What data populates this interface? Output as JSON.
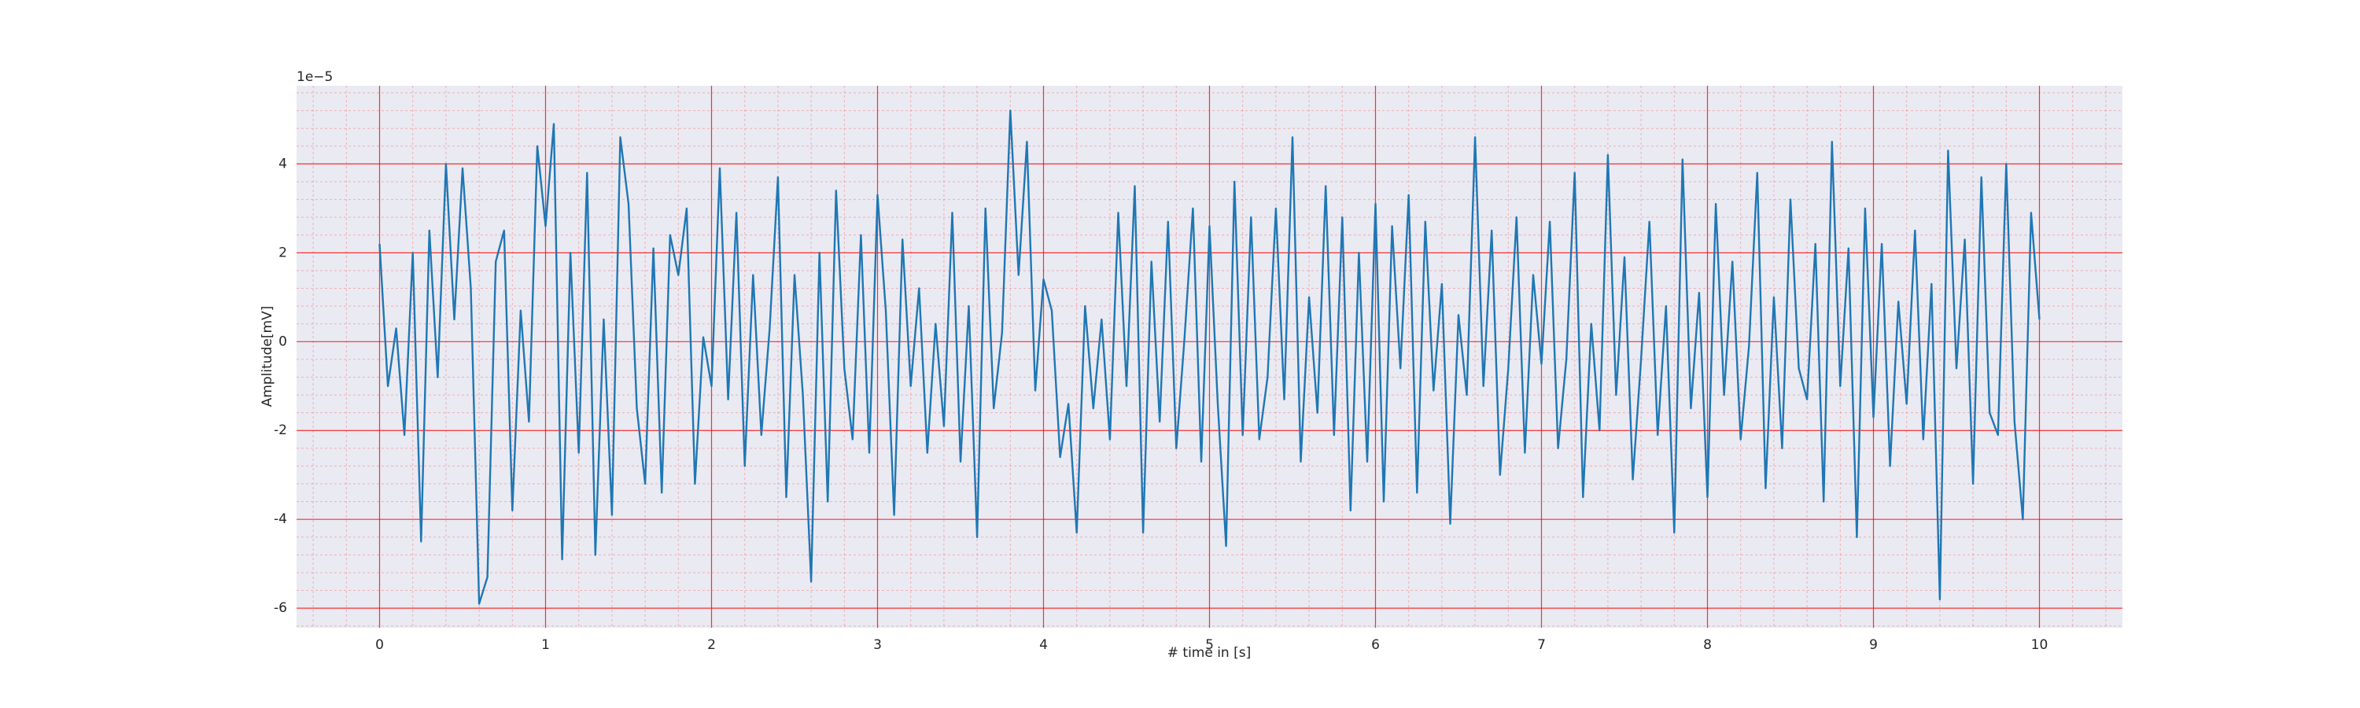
{
  "chart_data": {
    "type": "line",
    "x_label": "# time in [s]",
    "y_label": "Amplitude[mV]",
    "y_offset_label": "1e−5",
    "xlim": [
      -0.5,
      10.5
    ],
    "ylim": [
      -6.44,
      5.76
    ],
    "xticks": [
      0,
      1,
      2,
      3,
      4,
      5,
      6,
      7,
      8,
      9,
      10
    ],
    "yticks": [
      -6,
      -4,
      -2,
      0,
      2,
      4
    ],
    "grid": true,
    "grid_color": "#ff0000",
    "minor_divisions": 5,
    "background": "#eaeaf2",
    "x": [
      0,
      0.05,
      0.1,
      0.15,
      0.2,
      0.25,
      0.3,
      0.35,
      0.4,
      0.45,
      0.5,
      0.55,
      0.6,
      0.65,
      0.7,
      0.75,
      0.8,
      0.85,
      0.9,
      0.95,
      1,
      1.05,
      1.1,
      1.15,
      1.2,
      1.25,
      1.3,
      1.35,
      1.4,
      1.45,
      1.5,
      1.55,
      1.6,
      1.65,
      1.7,
      1.75,
      1.8,
      1.85,
      1.9,
      1.95,
      2,
      2.05,
      2.1,
      2.15,
      2.2,
      2.25,
      2.3,
      2.35,
      2.4,
      2.45,
      2.5,
      2.55,
      2.6,
      2.65,
      2.7,
      2.75,
      2.8,
      2.85,
      2.9,
      2.95,
      3,
      3.05,
      3.1,
      3.15,
      3.2,
      3.25,
      3.3,
      3.35,
      3.4,
      3.45,
      3.5,
      3.55,
      3.6,
      3.65,
      3.7,
      3.75,
      3.8,
      3.85,
      3.9,
      3.95,
      4,
      4.05,
      4.1,
      4.15,
      4.2,
      4.25,
      4.3,
      4.35,
      4.4,
      4.45,
      4.5,
      4.55,
      4.6,
      4.65,
      4.7,
      4.75,
      4.8,
      4.85,
      4.9,
      4.95,
      5,
      5.05,
      5.1,
      5.15,
      5.2,
      5.25,
      5.3,
      5.35,
      5.4,
      5.45,
      5.5,
      5.55,
      5.6,
      5.65,
      5.7,
      5.75,
      5.8,
      5.85,
      5.9,
      5.95,
      6,
      6.05,
      6.1,
      6.15,
      6.2,
      6.25,
      6.3,
      6.35,
      6.4,
      6.45,
      6.5,
      6.55,
      6.6,
      6.65,
      6.7,
      6.75,
      6.8,
      6.85,
      6.9,
      6.95,
      7,
      7.05,
      7.1,
      7.15,
      7.2,
      7.25,
      7.3,
      7.35,
      7.4,
      7.45,
      7.5,
      7.55,
      7.6,
      7.65,
      7.7,
      7.75,
      7.8,
      7.85,
      7.9,
      7.95,
      8,
      8.05,
      8.1,
      8.15,
      8.2,
      8.25,
      8.3,
      8.35,
      8.4,
      8.45,
      8.5,
      8.55,
      8.6,
      8.65,
      8.7,
      8.75,
      8.8,
      8.85,
      8.9,
      8.95,
      9,
      9.05,
      9.1,
      9.15,
      9.2,
      9.25,
      9.3,
      9.35,
      9.4,
      9.45,
      9.5,
      9.55,
      9.6,
      9.65,
      9.7,
      9.75,
      9.8,
      9.85,
      9.9,
      9.95,
      10
    ],
    "series": [
      {
        "color": "#1f77b4",
        "values": [
          2.2,
          -1.0,
          0.3,
          -2.1,
          2.0,
          -4.5,
          2.5,
          -0.8,
          4.0,
          0.5,
          3.9,
          1.2,
          -5.9,
          -5.3,
          1.8,
          2.5,
          -3.8,
          0.7,
          -1.8,
          4.4,
          2.6,
          4.9,
          -4.9,
          2.0,
          -2.5,
          3.8,
          -4.8,
          0.5,
          -3.9,
          4.6,
          3.1,
          -1.5,
          -3.2,
          2.1,
          -3.4,
          2.4,
          1.5,
          3.0,
          -3.2,
          0.1,
          -1.0,
          3.9,
          -1.3,
          2.9,
          -2.8,
          1.5,
          -2.1,
          0.3,
          3.7,
          -3.5,
          1.5,
          -1.2,
          -5.4,
          2.0,
          -3.6,
          3.4,
          -0.6,
          -2.2,
          2.4,
          -2.5,
          3.3,
          0.7,
          -3.9,
          2.3,
          -1.0,
          1.2,
          -2.5,
          0.4,
          -1.9,
          2.9,
          -2.7,
          0.8,
          -4.4,
          3.0,
          -1.5,
          0.2,
          5.2,
          1.5,
          4.5,
          -1.1,
          1.4,
          0.7,
          -2.6,
          -1.4,
          -4.3,
          0.8,
          -1.5,
          0.5,
          -2.2,
          2.9,
          -1.0,
          3.5,
          -4.3,
          1.8,
          -1.8,
          2.7,
          -2.4,
          0.1,
          3.0,
          -2.7,
          2.6,
          -1.4,
          -4.6,
          3.6,
          -2.1,
          2.8,
          -2.2,
          -0.8,
          3.0,
          -1.3,
          4.6,
          -2.7,
          1.0,
          -1.6,
          3.5,
          -2.1,
          2.8,
          -3.8,
          2.0,
          -2.7,
          3.1,
          -3.6,
          2.6,
          -0.6,
          3.3,
          -3.4,
          2.7,
          -1.1,
          1.3,
          -4.1,
          0.6,
          -1.2,
          4.6,
          -1.0,
          2.5,
          -3.0,
          -0.6,
          2.8,
          -2.5,
          1.5,
          -0.5,
          2.7,
          -2.4,
          -0.4,
          3.8,
          -3.5,
          0.4,
          -2.0,
          4.2,
          -1.2,
          1.9,
          -3.1,
          -0.4,
          2.7,
          -2.1,
          0.8,
          -4.3,
          4.1,
          -1.5,
          1.1,
          -3.5,
          3.1,
          -1.2,
          1.8,
          -2.2,
          -0.1,
          3.8,
          -3.3,
          1.0,
          -2.4,
          3.2,
          -0.6,
          -1.3,
          2.2,
          -3.6,
          4.5,
          -1.0,
          2.1,
          -4.4,
          3.0,
          -1.7,
          2.2,
          -2.8,
          0.9,
          -1.4,
          2.5,
          -2.2,
          1.3,
          -5.8,
          4.3,
          -0.6,
          2.3,
          -3.2,
          3.7,
          -1.6,
          -2.1,
          4.0,
          -1.8,
          -4.0,
          2.9,
          0.5
        ]
      }
    ]
  }
}
